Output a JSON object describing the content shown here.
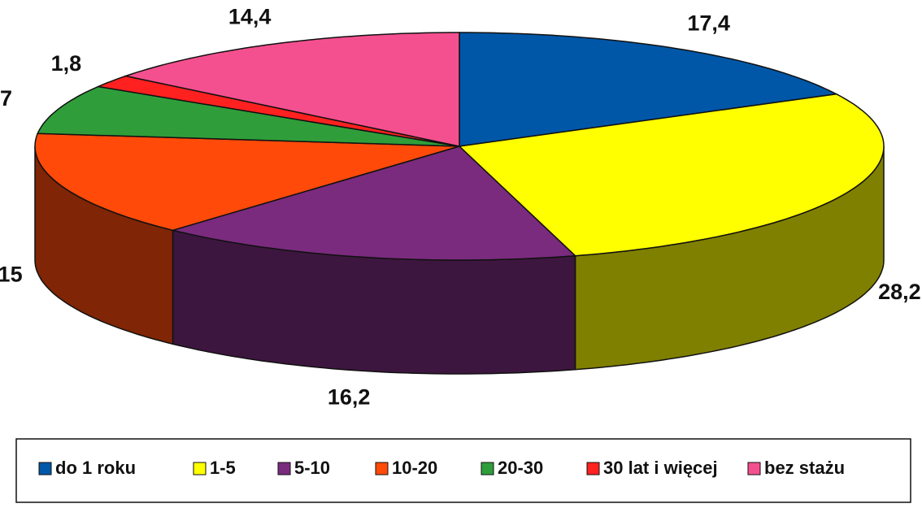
{
  "chart_data": {
    "type": "pie3d",
    "categories": [
      "do 1 roku",
      "1-5",
      "5-10",
      "10-20",
      "20-30",
      "30 lat i więcej",
      "bez stażu"
    ],
    "values": [
      17.4,
      28.2,
      16.2,
      15,
      7,
      1.8,
      14.4
    ],
    "value_labels": [
      "17,4",
      "28,2",
      "16,2",
      "15",
      "7",
      "1,8",
      "14,4"
    ],
    "colors": [
      "#0057a8",
      "#ffff00",
      "#7a2b7e",
      "#ff4a0a",
      "#2f9e3a",
      "#ff2020",
      "#f4508f"
    ],
    "legend": "bottom"
  }
}
